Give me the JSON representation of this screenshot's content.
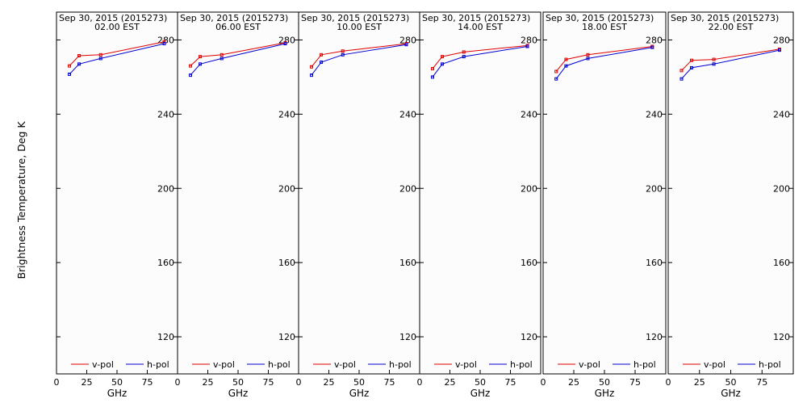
{
  "figure": {
    "ylabel": "Brightness Temperature, Deg K",
    "xlabel": "GHz"
  },
  "chart_data": [
    {
      "type": "line",
      "title": "Sep 30, 2015 (2015273)",
      "subtitle": "02.00 EST",
      "xlabel": "GHz",
      "ylabel": "Brightness Temperature, Deg K",
      "xlim": [
        0,
        100
      ],
      "ylim": [
        100,
        295
      ],
      "xticks": [
        0,
        25,
        50,
        75
      ],
      "yticks": [
        120,
        160,
        200,
        240,
        280
      ],
      "grid": false,
      "legend": "bottom",
      "x": [
        10.65,
        18.7,
        36.5,
        89.0
      ],
      "series": [
        {
          "name": "v-pol",
          "color": "#e00000",
          "values": [
            266.0,
            271.5,
            272.0,
            279.0
          ]
        },
        {
          "name": "h-pol",
          "color": "#0000d0",
          "values": [
            261.5,
            267.0,
            270.0,
            278.0
          ]
        }
      ]
    },
    {
      "type": "line",
      "title": "Sep 30, 2015 (2015273)",
      "subtitle": "06.00 EST",
      "xlabel": "GHz",
      "xlim": [
        0,
        100
      ],
      "ylim": [
        100,
        295
      ],
      "xticks": [
        0,
        25,
        50,
        75
      ],
      "yticks": [
        120,
        160,
        200,
        240,
        280
      ],
      "grid": false,
      "legend": "bottom",
      "x": [
        10.65,
        18.7,
        36.5,
        89.0
      ],
      "series": [
        {
          "name": "v-pol",
          "color": "#e00000",
          "values": [
            266.0,
            271.0,
            272.0,
            278.5
          ]
        },
        {
          "name": "h-pol",
          "color": "#0000d0",
          "values": [
            261.0,
            267.0,
            270.0,
            278.0
          ]
        }
      ]
    },
    {
      "type": "line",
      "title": "Sep 30, 2015 (2015273)",
      "subtitle": "10.00 EST",
      "xlabel": "GHz",
      "xlim": [
        0,
        100
      ],
      "ylim": [
        100,
        295
      ],
      "xticks": [
        0,
        25,
        50,
        75
      ],
      "yticks": [
        120,
        160,
        200,
        240,
        280
      ],
      "grid": false,
      "legend": "bottom",
      "x": [
        10.65,
        18.7,
        36.5,
        89.0
      ],
      "series": [
        {
          "name": "v-pol",
          "color": "#e00000",
          "values": [
            265.5,
            272.0,
            274.0,
            278.0
          ]
        },
        {
          "name": "h-pol",
          "color": "#0000d0",
          "values": [
            261.0,
            268.0,
            272.0,
            277.5
          ]
        }
      ]
    },
    {
      "type": "line",
      "title": "Sep 30, 2015 (2015273)",
      "subtitle": "14.00 EST",
      "xlabel": "GHz",
      "xlim": [
        0,
        100
      ],
      "ylim": [
        100,
        295
      ],
      "xticks": [
        0,
        25,
        50,
        75
      ],
      "yticks": [
        120,
        160,
        200,
        240,
        280
      ],
      "grid": false,
      "legend": "bottom",
      "x": [
        10.65,
        18.7,
        36.5,
        89.0
      ],
      "series": [
        {
          "name": "v-pol",
          "color": "#e00000",
          "values": [
            264.5,
            271.0,
            273.5,
            277.0
          ]
        },
        {
          "name": "h-pol",
          "color": "#0000d0",
          "values": [
            260.0,
            267.0,
            271.0,
            276.5
          ]
        }
      ]
    },
    {
      "type": "line",
      "title": "Sep 30, 2015 (2015273)",
      "subtitle": "18.00 EST",
      "xlabel": "GHz",
      "xlim": [
        0,
        100
      ],
      "ylim": [
        100,
        295
      ],
      "xticks": [
        0,
        25,
        50,
        75
      ],
      "yticks": [
        120,
        160,
        200,
        240,
        280
      ],
      "grid": false,
      "legend": "bottom",
      "x": [
        10.65,
        18.7,
        36.5,
        89.0
      ],
      "series": [
        {
          "name": "v-pol",
          "color": "#e00000",
          "values": [
            263.0,
            269.5,
            272.0,
            276.5
          ]
        },
        {
          "name": "h-pol",
          "color": "#0000d0",
          "values": [
            259.0,
            266.0,
            270.0,
            276.0
          ]
        }
      ]
    },
    {
      "type": "line",
      "title": "Sep 30, 2015 (2015273)",
      "subtitle": "22.00 EST",
      "xlabel": "GHz",
      "xlim": [
        0,
        100
      ],
      "ylim": [
        100,
        295
      ],
      "xticks": [
        0,
        25,
        50,
        75
      ],
      "yticks": [
        120,
        160,
        200,
        240,
        280
      ],
      "grid": false,
      "legend": "bottom",
      "x": [
        10.65,
        18.7,
        36.5,
        89.0
      ],
      "series": [
        {
          "name": "v-pol",
          "color": "#e00000",
          "values": [
            263.5,
            269.0,
            269.5,
            275.0
          ]
        },
        {
          "name": "h-pol",
          "color": "#0000d0",
          "values": [
            259.0,
            265.0,
            267.0,
            274.5
          ]
        }
      ]
    }
  ]
}
